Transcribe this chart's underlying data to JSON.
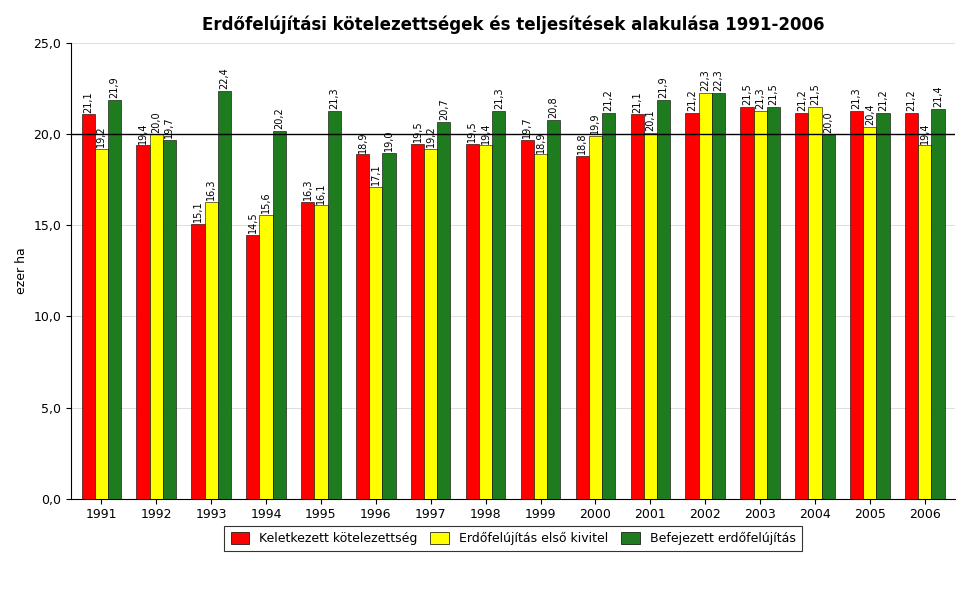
{
  "title": "Erdőfelújítási kötelezettségek és teljesítések alakulása 1991-2006",
  "ylabel": "ezer ha",
  "years": [
    1991,
    1992,
    1993,
    1994,
    1995,
    1996,
    1997,
    1998,
    1999,
    2000,
    2001,
    2002,
    2003,
    2004,
    2005,
    2006
  ],
  "red_values": [
    21.1,
    19.4,
    15.1,
    14.5,
    16.3,
    18.9,
    19.5,
    19.5,
    19.7,
    18.8,
    21.1,
    21.2,
    21.5,
    21.2,
    21.3,
    21.2
  ],
  "yellow_values": [
    19.2,
    20.0,
    16.3,
    15.6,
    16.1,
    17.1,
    19.2,
    19.4,
    18.9,
    19.9,
    20.1,
    22.3,
    21.3,
    21.5,
    20.4,
    19.4
  ],
  "green_values": [
    21.9,
    19.7,
    22.4,
    20.2,
    21.3,
    19.0,
    20.7,
    21.3,
    20.8,
    21.2,
    21.9,
    22.3,
    21.5,
    20.0,
    21.2,
    21.4
  ],
  "red_labels": [
    "21,1",
    "19,4",
    "15,1",
    "14,5",
    "16,3",
    "18,9",
    "19,5",
    "19,5",
    "19,7",
    "18,8",
    "21,1",
    "21,2",
    "21,5",
    "21,2",
    "21,3",
    "21,2"
  ],
  "yellow_labels": [
    "19,2",
    "20,0",
    "16,3",
    "15,6",
    "16,1",
    "17,1",
    "19,2",
    "19,4",
    "18,9",
    "19,9",
    "20,1",
    "22,3",
    "21,3",
    "21,5",
    "20,4",
    "19,4"
  ],
  "green_labels": [
    "21,9",
    "19,7",
    "22,4",
    "20,2",
    "21,3",
    "19,0",
    "20,7",
    "21,3",
    "20,8",
    "21,2",
    "21,9",
    "22,3",
    "21,5",
    "20,0",
    "21,2",
    "21,4"
  ],
  "bar_width": 0.24,
  "red_color": "#FF0000",
  "yellow_color": "#FFFF00",
  "green_color": "#1E7B1E",
  "ylim": [
    0,
    25
  ],
  "ytick_values": [
    0.0,
    5.0,
    10.0,
    15.0,
    20.0,
    25.0
  ],
  "ytick_labels": [
    "0,0",
    "5,0",
    "10,0",
    "15,0",
    "20,0",
    "25,0"
  ],
  "hline_y": 20.0,
  "legend_labels": [
    "Keletkezett kötelezettség",
    "Erdőfelújítás első kivitel",
    "Befejezett erdőfelújítás"
  ],
  "title_fontsize": 12,
  "label_fontsize": 7,
  "axis_fontsize": 9,
  "legend_fontsize": 9
}
